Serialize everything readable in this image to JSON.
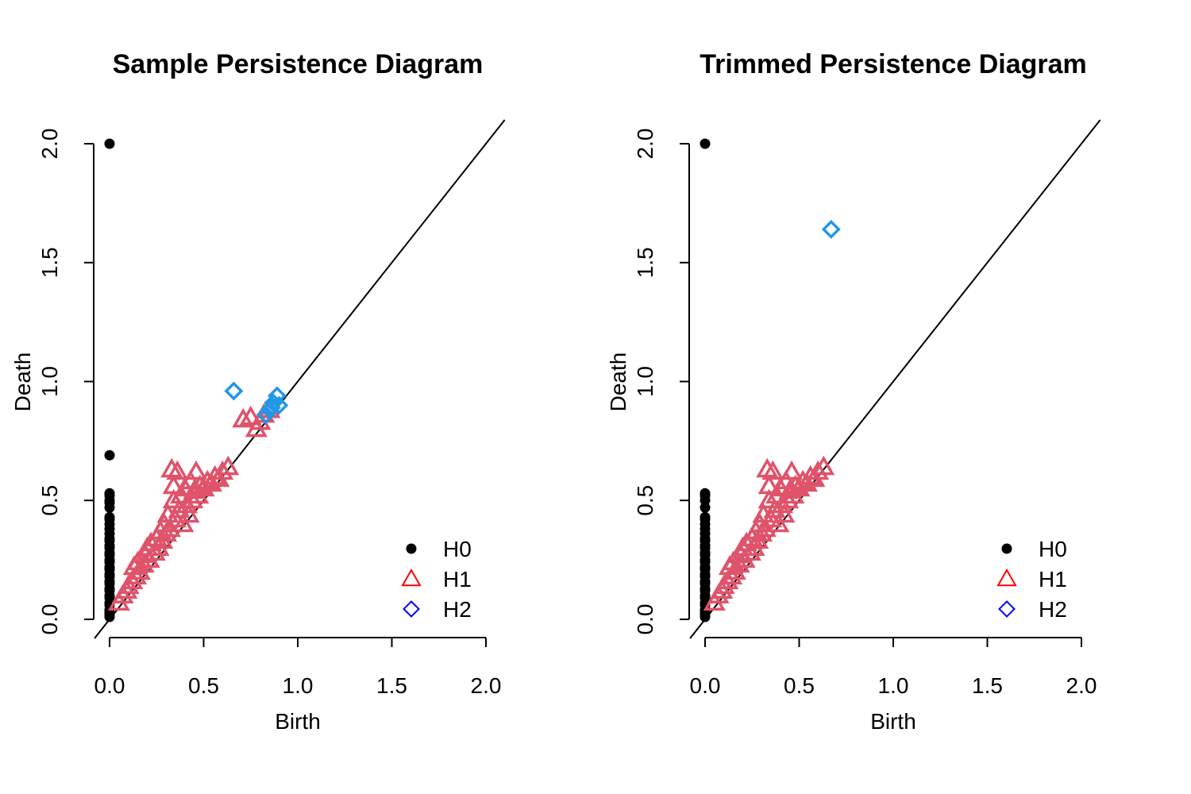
{
  "chart_data": [
    {
      "type": "scatter",
      "title": "Sample Persistence Diagram",
      "xlabel": "Birth",
      "ylabel": "Death",
      "xlim": [
        0,
        2
      ],
      "ylim": [
        0,
        2
      ],
      "xticks": [
        "0.0",
        "0.5",
        "1.0",
        "1.5",
        "2.0"
      ],
      "yticks": [
        "0.0",
        "0.5",
        "1.0",
        "1.5",
        "2.0"
      ],
      "diagonal": true,
      "legend_position": "bottom-right",
      "legend": [
        "H0",
        "H1",
        "H2"
      ],
      "series": [
        {
          "name": "H0",
          "marker": "filled-circle",
          "color": "#000000",
          "points": [
            [
              0,
              2.0
            ],
            [
              0,
              0.69
            ],
            [
              0,
              0.53
            ],
            [
              0,
              0.52
            ],
            [
              0,
              0.5
            ],
            [
              0,
              0.49
            ],
            [
              0,
              0.47
            ],
            [
              0,
              0.43
            ],
            [
              0,
              0.42
            ],
            [
              0,
              0.4
            ],
            [
              0,
              0.38
            ],
            [
              0,
              0.36
            ],
            [
              0,
              0.34
            ],
            [
              0,
              0.33
            ],
            [
              0,
              0.31
            ],
            [
              0,
              0.3
            ],
            [
              0,
              0.28
            ],
            [
              0,
              0.27
            ],
            [
              0,
              0.25
            ],
            [
              0,
              0.24
            ],
            [
              0,
              0.22
            ],
            [
              0,
              0.21
            ],
            [
              0,
              0.19
            ],
            [
              0,
              0.18
            ],
            [
              0,
              0.16
            ],
            [
              0,
              0.15
            ],
            [
              0,
              0.13
            ],
            [
              0,
              0.12
            ],
            [
              0,
              0.1
            ],
            [
              0,
              0.09
            ],
            [
              0,
              0.07
            ],
            [
              0,
              0.06
            ],
            [
              0,
              0.04
            ],
            [
              0,
              0.03
            ],
            [
              0,
              0.02
            ],
            [
              0,
              0.01
            ]
          ]
        },
        {
          "name": "H1",
          "marker": "open-triangle",
          "color": "#df536b",
          "points": [
            [
              0.05,
              0.07
            ],
            [
              0.07,
              0.1
            ],
            [
              0.09,
              0.12
            ],
            [
              0.1,
              0.14
            ],
            [
              0.12,
              0.16
            ],
            [
              0.14,
              0.18
            ],
            [
              0.13,
              0.22
            ],
            [
              0.15,
              0.24
            ],
            [
              0.16,
              0.2
            ],
            [
              0.18,
              0.23
            ],
            [
              0.19,
              0.27
            ],
            [
              0.2,
              0.3
            ],
            [
              0.21,
              0.25
            ],
            [
              0.22,
              0.32
            ],
            [
              0.24,
              0.28
            ],
            [
              0.25,
              0.34
            ],
            [
              0.26,
              0.3
            ],
            [
              0.27,
              0.37
            ],
            [
              0.28,
              0.33
            ],
            [
              0.29,
              0.4
            ],
            [
              0.3,
              0.36
            ],
            [
              0.31,
              0.44
            ],
            [
              0.32,
              0.38
            ],
            [
              0.33,
              0.63
            ],
            [
              0.34,
              0.56
            ],
            [
              0.34,
              0.5
            ],
            [
              0.35,
              0.42
            ],
            [
              0.36,
              0.62
            ],
            [
              0.37,
              0.46
            ],
            [
              0.38,
              0.52
            ],
            [
              0.39,
              0.4
            ],
            [
              0.4,
              0.55
            ],
            [
              0.41,
              0.48
            ],
            [
              0.42,
              0.44
            ],
            [
              0.43,
              0.58
            ],
            [
              0.44,
              0.5
            ],
            [
              0.45,
              0.54
            ],
            [
              0.46,
              0.62
            ],
            [
              0.47,
              0.52
            ],
            [
              0.48,
              0.56
            ],
            [
              0.5,
              0.55
            ],
            [
              0.52,
              0.58
            ],
            [
              0.54,
              0.57
            ],
            [
              0.56,
              0.6
            ],
            [
              0.58,
              0.59
            ],
            [
              0.6,
              0.62
            ],
            [
              0.63,
              0.64
            ],
            [
              0.71,
              0.84
            ],
            [
              0.75,
              0.85
            ],
            [
              0.78,
              0.8
            ],
            [
              0.8,
              0.83
            ],
            [
              0.82,
              0.86
            ],
            [
              0.85,
              0.88
            ]
          ]
        },
        {
          "name": "H2",
          "marker": "open-diamond",
          "color": "#2297e6",
          "points": [
            [
              0.66,
              0.96
            ],
            [
              0.83,
              0.86
            ],
            [
              0.85,
              0.88
            ],
            [
              0.86,
              0.89
            ],
            [
              0.87,
              0.91
            ],
            [
              0.89,
              0.94
            ],
            [
              0.9,
              0.9
            ]
          ]
        }
      ]
    },
    {
      "type": "scatter",
      "title": "Trimmed Persistence Diagram",
      "xlabel": "Birth",
      "ylabel": "Death",
      "xlim": [
        0,
        2
      ],
      "ylim": [
        0,
        2
      ],
      "xticks": [
        "0.0",
        "0.5",
        "1.0",
        "1.5",
        "2.0"
      ],
      "yticks": [
        "0.0",
        "0.5",
        "1.0",
        "1.5",
        "2.0"
      ],
      "diagonal": true,
      "legend_position": "bottom-right",
      "legend": [
        "H0",
        "H1",
        "H2"
      ],
      "series": [
        {
          "name": "H0",
          "marker": "filled-circle",
          "color": "#000000",
          "points": [
            [
              0,
              2.0
            ],
            [
              0,
              0.53
            ],
            [
              0,
              0.52
            ],
            [
              0,
              0.5
            ],
            [
              0,
              0.47
            ],
            [
              0,
              0.43
            ],
            [
              0,
              0.42
            ],
            [
              0,
              0.4
            ],
            [
              0,
              0.38
            ],
            [
              0,
              0.36
            ],
            [
              0,
              0.34
            ],
            [
              0,
              0.33
            ],
            [
              0,
              0.31
            ],
            [
              0,
              0.3
            ],
            [
              0,
              0.28
            ],
            [
              0,
              0.27
            ],
            [
              0,
              0.25
            ],
            [
              0,
              0.24
            ],
            [
              0,
              0.22
            ],
            [
              0,
              0.21
            ],
            [
              0,
              0.19
            ],
            [
              0,
              0.18
            ],
            [
              0,
              0.16
            ],
            [
              0,
              0.15
            ],
            [
              0,
              0.13
            ],
            [
              0,
              0.12
            ],
            [
              0,
              0.1
            ],
            [
              0,
              0.09
            ],
            [
              0,
              0.07
            ],
            [
              0,
              0.06
            ],
            [
              0,
              0.04
            ],
            [
              0,
              0.03
            ],
            [
              0,
              0.02
            ],
            [
              0,
              0.01
            ]
          ]
        },
        {
          "name": "H1",
          "marker": "open-triangle",
          "color": "#df536b",
          "points": [
            [
              0.05,
              0.07
            ],
            [
              0.07,
              0.1
            ],
            [
              0.09,
              0.12
            ],
            [
              0.1,
              0.14
            ],
            [
              0.12,
              0.16
            ],
            [
              0.14,
              0.18
            ],
            [
              0.13,
              0.22
            ],
            [
              0.15,
              0.24
            ],
            [
              0.16,
              0.2
            ],
            [
              0.18,
              0.23
            ],
            [
              0.19,
              0.27
            ],
            [
              0.2,
              0.3
            ],
            [
              0.21,
              0.25
            ],
            [
              0.22,
              0.32
            ],
            [
              0.24,
              0.28
            ],
            [
              0.25,
              0.34
            ],
            [
              0.26,
              0.3
            ],
            [
              0.27,
              0.37
            ],
            [
              0.28,
              0.33
            ],
            [
              0.29,
              0.4
            ],
            [
              0.3,
              0.36
            ],
            [
              0.31,
              0.44
            ],
            [
              0.32,
              0.38
            ],
            [
              0.33,
              0.63
            ],
            [
              0.34,
              0.56
            ],
            [
              0.34,
              0.5
            ],
            [
              0.35,
              0.42
            ],
            [
              0.36,
              0.62
            ],
            [
              0.37,
              0.46
            ],
            [
              0.38,
              0.52
            ],
            [
              0.39,
              0.4
            ],
            [
              0.4,
              0.55
            ],
            [
              0.41,
              0.48
            ],
            [
              0.42,
              0.44
            ],
            [
              0.43,
              0.58
            ],
            [
              0.44,
              0.5
            ],
            [
              0.45,
              0.54
            ],
            [
              0.46,
              0.62
            ],
            [
              0.47,
              0.52
            ],
            [
              0.48,
              0.56
            ],
            [
              0.5,
              0.55
            ],
            [
              0.52,
              0.58
            ],
            [
              0.54,
              0.57
            ],
            [
              0.56,
              0.6
            ],
            [
              0.58,
              0.59
            ],
            [
              0.6,
              0.62
            ],
            [
              0.63,
              0.64
            ]
          ]
        },
        {
          "name": "H2",
          "marker": "open-diamond",
          "color": "#2297e6",
          "points": [
            [
              0.67,
              1.64
            ]
          ]
        }
      ]
    }
  ],
  "legend_style": {
    "H0": "#000000",
    "H1": "#ff0000",
    "H2": "#0000ff"
  }
}
